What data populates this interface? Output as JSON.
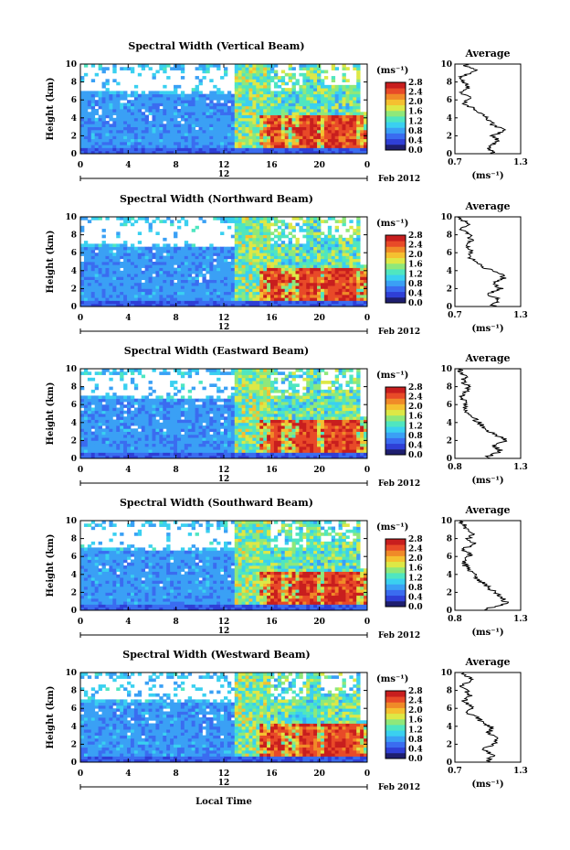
{
  "shared": {
    "ylabel": "Height (km)",
    "yticks": [
      "0",
      "2",
      "4",
      "6",
      "8",
      "10"
    ],
    "xticks": [
      "0",
      "4",
      "8",
      "12",
      "16",
      "20",
      "0"
    ],
    "xsublabel": "12",
    "date": "Feb 2012",
    "units": "(ms⁻¹)",
    "colorbar_ticks": [
      "0.0",
      "0.4",
      "0.8",
      "1.2",
      "1.6",
      "2.0",
      "2.4",
      "2.8"
    ],
    "profile_title": "Average",
    "profile_xlabel": "(ms⁻¹)",
    "colorbar_colors": [
      "#1e1e6e",
      "#2f3fd6",
      "#3a6cf0",
      "#3aa0f5",
      "#3ad0f0",
      "#4fe6c0",
      "#8fe87a",
      "#dde846",
      "#f5c030",
      "#f08a28",
      "#e84a28",
      "#c81e1e"
    ],
    "xlabel": "Local Time"
  },
  "chart_data": [
    {
      "type": "heatmap",
      "title": "Spectral Width (Vertical Beam)",
      "xlim": [
        0,
        24
      ],
      "ylim": [
        0,
        10
      ],
      "clim": [
        0.0,
        3.0
      ],
      "profile": {
        "title": "Average",
        "xticks": [
          "0.7",
          "1.3"
        ],
        "xlim": [
          0.7,
          1.3
        ],
        "heights": [
          0.2,
          0.8,
          1.4,
          2.0,
          2.6,
          3.2,
          3.8,
          4.4,
          5.0,
          5.6,
          6.2,
          6.8,
          7.4,
          8.0,
          8.6,
          9.2,
          9.8
        ],
        "values": [
          1.05,
          1.0,
          1.1,
          1.05,
          1.15,
          1.05,
          1.0,
          0.95,
          0.88,
          0.78,
          0.84,
          0.76,
          0.82,
          0.78,
          0.74,
          0.9,
          0.8
        ]
      }
    },
    {
      "type": "heatmap",
      "title": "Spectral Width (Northward Beam)",
      "xlim": [
        0,
        24
      ],
      "ylim": [
        0,
        10
      ],
      "clim": [
        0.0,
        3.0
      ],
      "profile": {
        "title": "Average",
        "xticks": [
          "0.7",
          "1.3"
        ],
        "xlim": [
          0.7,
          1.3
        ],
        "heights": [
          0.2,
          0.8,
          1.4,
          2.0,
          2.6,
          3.2,
          3.8,
          4.4,
          5.0,
          5.6,
          6.2,
          6.8,
          7.4,
          8.0,
          8.6,
          9.2,
          9.8
        ],
        "values": [
          1.05,
          1.1,
          1.0,
          1.12,
          1.05,
          1.15,
          1.1,
          0.95,
          0.9,
          0.82,
          0.86,
          0.8,
          0.85,
          0.83,
          0.76,
          0.82,
          0.75
        ]
      }
    },
    {
      "type": "heatmap",
      "title": "Spectral Width (Eastward Beam)",
      "xlim": [
        0,
        24
      ],
      "ylim": [
        0,
        10
      ],
      "clim": [
        0.0,
        3.0
      ],
      "profile": {
        "title": "Average",
        "xticks": [
          "0.8",
          "1.3"
        ],
        "xlim": [
          0.8,
          1.3
        ],
        "heights": [
          0.2,
          0.8,
          1.4,
          2.0,
          2.6,
          3.2,
          3.8,
          4.4,
          5.0,
          5.6,
          6.2,
          6.8,
          7.4,
          8.0,
          8.6,
          9.2,
          9.8
        ],
        "values": [
          1.05,
          1.15,
          1.1,
          1.2,
          1.1,
          1.05,
          1.0,
          0.95,
          0.9,
          0.86,
          0.9,
          0.84,
          0.88,
          0.9,
          0.86,
          0.88,
          0.84
        ]
      }
    },
    {
      "type": "heatmap",
      "title": "Spectral Width (Southward Beam)",
      "xlim": [
        0,
        24
      ],
      "ylim": [
        0,
        10
      ],
      "clim": [
        0.0,
        3.0
      ],
      "profile": {
        "title": "Average",
        "xticks": [
          "0.8",
          "1.3"
        ],
        "xlim": [
          0.8,
          1.3
        ],
        "heights": [
          0.2,
          0.8,
          1.4,
          2.0,
          2.6,
          3.2,
          3.8,
          4.4,
          5.0,
          5.6,
          6.2,
          6.8,
          7.4,
          8.0,
          8.6,
          9.2,
          9.8
        ],
        "values": [
          1.05,
          1.2,
          1.15,
          1.1,
          1.05,
          1.0,
          0.95,
          0.92,
          0.88,
          0.86,
          0.92,
          0.86,
          0.95,
          0.9,
          0.94,
          0.88,
          0.85
        ]
      }
    },
    {
      "type": "heatmap",
      "title": "Spectral Width (Westward Beam)",
      "xlim": [
        0,
        24
      ],
      "ylim": [
        0,
        10
      ],
      "clim": [
        0.0,
        3.0
      ],
      "profile": {
        "title": "Average",
        "xticks": [
          "0.7",
          "1.3"
        ],
        "xlim": [
          0.7,
          1.3
        ],
        "heights": [
          0.2,
          0.8,
          1.4,
          2.0,
          2.6,
          3.2,
          3.8,
          4.4,
          5.0,
          5.6,
          6.2,
          6.8,
          7.4,
          8.0,
          8.6,
          9.2,
          9.8
        ],
        "values": [
          1.0,
          1.05,
          0.95,
          1.05,
          1.1,
          1.0,
          1.05,
          0.95,
          0.9,
          0.8,
          0.86,
          0.78,
          0.84,
          0.8,
          0.76,
          0.86,
          0.78
        ]
      }
    }
  ]
}
